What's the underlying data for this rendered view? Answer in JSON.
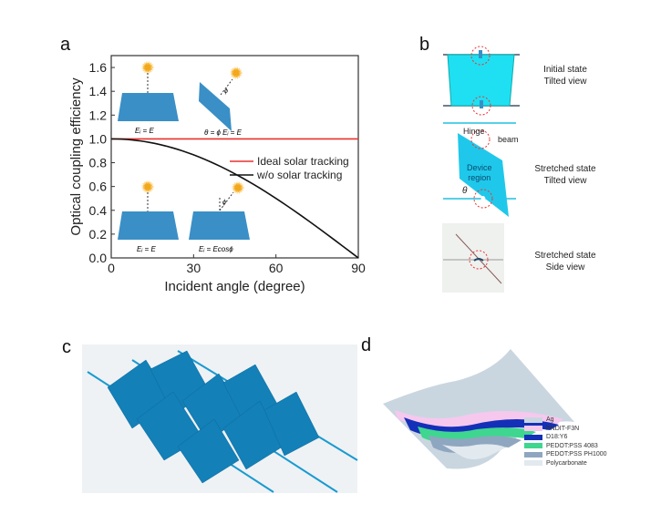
{
  "panels": {
    "a": "a",
    "b": "b",
    "c": "c",
    "d": "d"
  },
  "chart_data": {
    "type": "line",
    "xlabel": "Incident angle (degree)",
    "ylabel": "Optical coupling efficiency",
    "xlim": [
      0,
      90
    ],
    "ylim": [
      0,
      1.7
    ],
    "xticks": [
      "0",
      "30",
      "60",
      "90"
    ],
    "yticks": [
      "0.0",
      "0.2",
      "0.4",
      "0.6",
      "0.8",
      "1.0",
      "1.2",
      "1.4",
      "1.6"
    ],
    "legend_position": "center-right",
    "x": [
      0,
      10,
      20,
      30,
      40,
      50,
      60,
      70,
      80,
      90
    ],
    "series": [
      {
        "name": "Ideal solar tracking",
        "color": "#e8322e",
        "values": [
          1,
          1,
          1,
          1,
          1,
          1,
          1,
          1,
          1,
          1
        ]
      },
      {
        "name": "w/o solar tracking",
        "color": "#111111",
        "values": [
          1.0,
          0.985,
          0.94,
          0.866,
          0.766,
          0.643,
          0.5,
          0.342,
          0.174,
          0.0
        ]
      }
    ],
    "insets": {
      "tracking_flat": "Eᵢ = E",
      "tracking_tilted": "θ = ϕ    Eᵢ = E",
      "no_tracking_flat": "Eᵢ = E",
      "no_tracking_oblique": "Eᵢ = Ecosϕ",
      "angle_symbol": "ϕ"
    }
  },
  "panel_b": {
    "initial": [
      "Initial state",
      "Tilted view"
    ],
    "stretched_tilted": [
      "Stretched state",
      "Tilted view"
    ],
    "stretched_side": [
      "Stretched state",
      "Side view"
    ],
    "hinge": "Hinge",
    "beam": "beam",
    "device_region": [
      "Device",
      "region"
    ],
    "theta": "θ"
  },
  "panel_d": {
    "legend": [
      {
        "label": "Ag",
        "color": "#c9d6e0"
      },
      {
        "label": "PNDIT-F3N",
        "color": "#f6c8ee"
      },
      {
        "label": "D18:Y6",
        "color": "#1430b8"
      },
      {
        "label": "PEDOT:PSS 4083",
        "color": "#3fd690"
      },
      {
        "label": "PEDOT:PSS PH1000",
        "color": "#8fa6c0"
      },
      {
        "label": "Polycarbonate",
        "color": "#e2e9ef"
      }
    ]
  }
}
